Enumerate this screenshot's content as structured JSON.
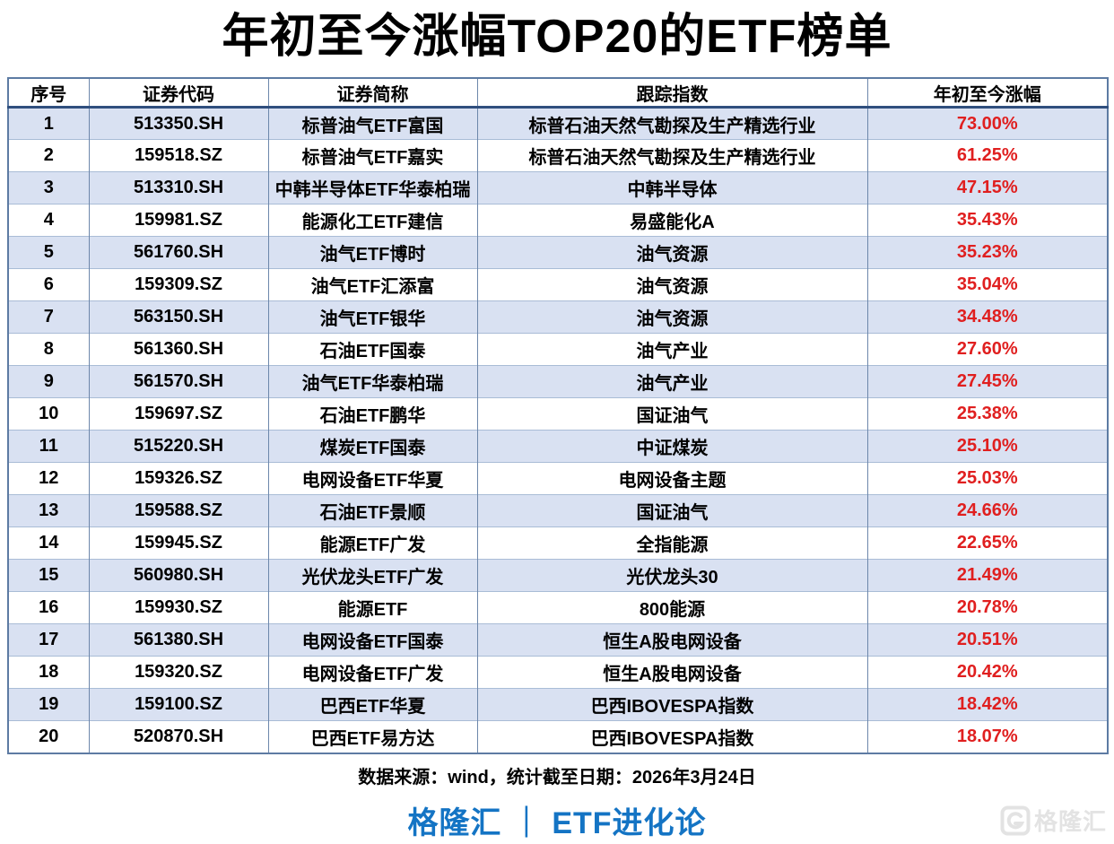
{
  "title": "年初至今涨幅TOP20的ETF榜单",
  "chart_data": {
    "type": "table",
    "title": "年初至今涨幅TOP20的ETF榜单",
    "columns": [
      "序号",
      "证券代码",
      "证券简称",
      "跟踪指数",
      "年初至今涨幅"
    ],
    "rows": [
      [
        "1",
        "513350.SH",
        "标普油气ETF富国",
        "标普石油天然气勘探及生产精选行业",
        "73.00%"
      ],
      [
        "2",
        "159518.SZ",
        "标普油气ETF嘉实",
        "标普石油天然气勘探及生产精选行业",
        "61.25%"
      ],
      [
        "3",
        "513310.SH",
        "中韩半导体ETF华泰柏瑞",
        "中韩半导体",
        "47.15%"
      ],
      [
        "4",
        "159981.SZ",
        "能源化工ETF建信",
        "易盛能化A",
        "35.43%"
      ],
      [
        "5",
        "561760.SH",
        "油气ETF博时",
        "油气资源",
        "35.23%"
      ],
      [
        "6",
        "159309.SZ",
        "油气ETF汇添富",
        "油气资源",
        "35.04%"
      ],
      [
        "7",
        "563150.SH",
        "油气ETF银华",
        "油气资源",
        "34.48%"
      ],
      [
        "8",
        "561360.SH",
        "石油ETF国泰",
        "油气产业",
        "27.60%"
      ],
      [
        "9",
        "561570.SH",
        "油气ETF华泰柏瑞",
        "油气产业",
        "27.45%"
      ],
      [
        "10",
        "159697.SZ",
        "石油ETF鹏华",
        "国证油气",
        "25.38%"
      ],
      [
        "11",
        "515220.SH",
        "煤炭ETF国泰",
        "中证煤炭",
        "25.10%"
      ],
      [
        "12",
        "159326.SZ",
        "电网设备ETF华夏",
        "电网设备主题",
        "25.03%"
      ],
      [
        "13",
        "159588.SZ",
        "石油ETF景顺",
        "国证油气",
        "24.66%"
      ],
      [
        "14",
        "159945.SZ",
        "能源ETF广发",
        "全指能源",
        "22.65%"
      ],
      [
        "15",
        "560980.SH",
        "光伏龙头ETF广发",
        "光伏龙头30",
        "21.49%"
      ],
      [
        "16",
        "159930.SZ",
        "能源ETF",
        "800能源",
        "20.78%"
      ],
      [
        "17",
        "561380.SH",
        "电网设备ETF国泰",
        "恒生A股电网设备",
        "20.51%"
      ],
      [
        "18",
        "159320.SZ",
        "电网设备ETF广发",
        "恒生A股电网设备",
        "20.42%"
      ],
      [
        "19",
        "159100.SZ",
        "巴西ETF华夏",
        "巴西IBOVESPA指数",
        "18.42%"
      ],
      [
        "20",
        "520870.SH",
        "巴西ETF易方达",
        "巴西IBOVESPA指数",
        "18.07%"
      ]
    ]
  },
  "footer": {
    "source": "数据来源：wind，统计截至日期：2026年3月24日",
    "brand": "格隆汇 ｜ ETF进化论"
  },
  "watermark": {
    "text": "格隆汇"
  },
  "colors": {
    "row_alt_bg": "#d9e1f2",
    "change_red": "#e01f1f",
    "brand_blue": "#1474c4",
    "border_outer": "#5d7ba3",
    "border_vertical": "#6d87ab",
    "border_horizontal": "#a9bcd6",
    "header_underline": "#2f4f7e",
    "watermark_gray": "#e3e3e3"
  }
}
